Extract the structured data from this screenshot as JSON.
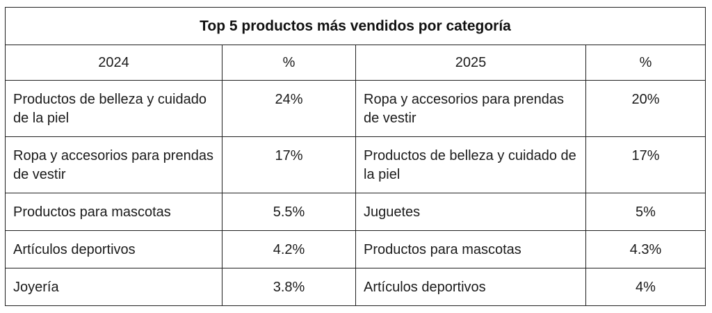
{
  "table": {
    "title": "Top 5 productos más vendidos por categoría",
    "headers": [
      "2024",
      "%",
      "2025",
      "%"
    ],
    "rows": [
      [
        "Productos de belleza y cuidado de la piel",
        "24%",
        "Ropa y accesorios para prendas de vestir",
        "20%"
      ],
      [
        "Ropa y accesorios para prendas de vestir",
        "17%",
        "Productos de belleza y cuidado de la piel",
        "17%"
      ],
      [
        "Productos para mascotas",
        "5.5%",
        "Juguetes",
        "5%"
      ],
      [
        "Artículos deportivos",
        "4.2%",
        "Productos para mascotas",
        "4.3%"
      ],
      [
        "Joyería",
        "3.8%",
        "Artículos deportivos",
        "4%"
      ]
    ]
  }
}
